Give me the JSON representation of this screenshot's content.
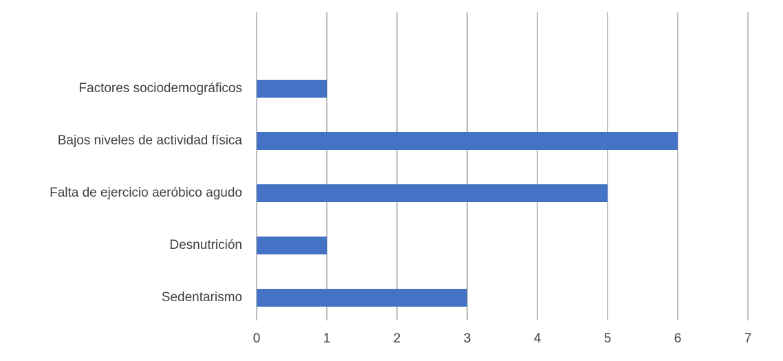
{
  "chart_data": {
    "type": "barh",
    "categories": [
      "Factores sociodemográficos",
      "Bajos niveles de actividad física",
      "Falta de ejercicio aeróbico agudo",
      "Desnutrición",
      "Sedentarismo"
    ],
    "values": [
      1,
      6,
      5,
      1,
      3
    ],
    "color": "#4472c4",
    "xlim": [
      0,
      7
    ],
    "xticks": [
      0,
      1,
      2,
      3,
      4,
      5,
      6,
      7
    ],
    "grid": true
  }
}
